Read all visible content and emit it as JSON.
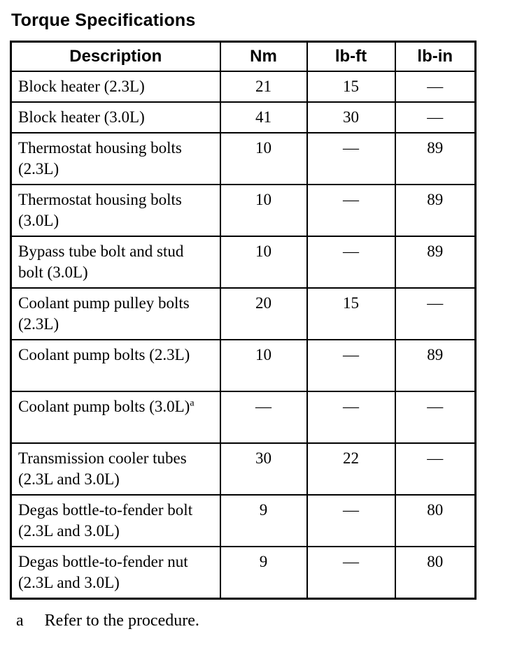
{
  "page": {
    "title": "Torque Specifications"
  },
  "table": {
    "columns": [
      "Description",
      "Nm",
      "lb-ft",
      "lb-in"
    ],
    "rows": [
      {
        "description": "Block heater (2.3L)",
        "nm": "21",
        "lb_ft": "15",
        "lb_in": "—"
      },
      {
        "description": "Block heater (3.0L)",
        "nm": "41",
        "lb_ft": "30",
        "lb_in": "—"
      },
      {
        "description": "Thermostat housing bolts (2.3L)",
        "nm": "10",
        "lb_ft": "—",
        "lb_in": "89"
      },
      {
        "description": "Thermostat housing bolts (3.0L)",
        "nm": "10",
        "lb_ft": "—",
        "lb_in": "89"
      },
      {
        "description": "Bypass tube bolt and stud bolt (3.0L)",
        "nm": "10",
        "lb_ft": "—",
        "lb_in": "89"
      },
      {
        "description": "Coolant pump pulley bolts (2.3L)",
        "nm": "20",
        "lb_ft": "15",
        "lb_in": "—"
      },
      {
        "description": "Coolant pump bolts (2.3L)",
        "nm": "10",
        "lb_ft": "—",
        "lb_in": "89"
      },
      {
        "description": "Coolant pump bolts (3.0L)",
        "footnote_marker": "a",
        "nm": "—",
        "lb_ft": "—",
        "lb_in": "—"
      },
      {
        "description": "Transmission cooler tubes (2.3L and 3.0L)",
        "nm": "30",
        "lb_ft": "22",
        "lb_in": "—"
      },
      {
        "description": "Degas bottle-to-fender bolt (2.3L and 3.0L)",
        "nm": "9",
        "lb_ft": "—",
        "lb_in": "80"
      },
      {
        "description": "Degas bottle-to-fender nut (2.3L and 3.0L)",
        "nm": "9",
        "lb_ft": "—",
        "lb_in": "80"
      }
    ]
  },
  "footnote": {
    "marker": "a",
    "text": "Refer to the procedure."
  },
  "colors": {
    "background": "#ffffff",
    "text": "#000000",
    "border": "#000000"
  }
}
